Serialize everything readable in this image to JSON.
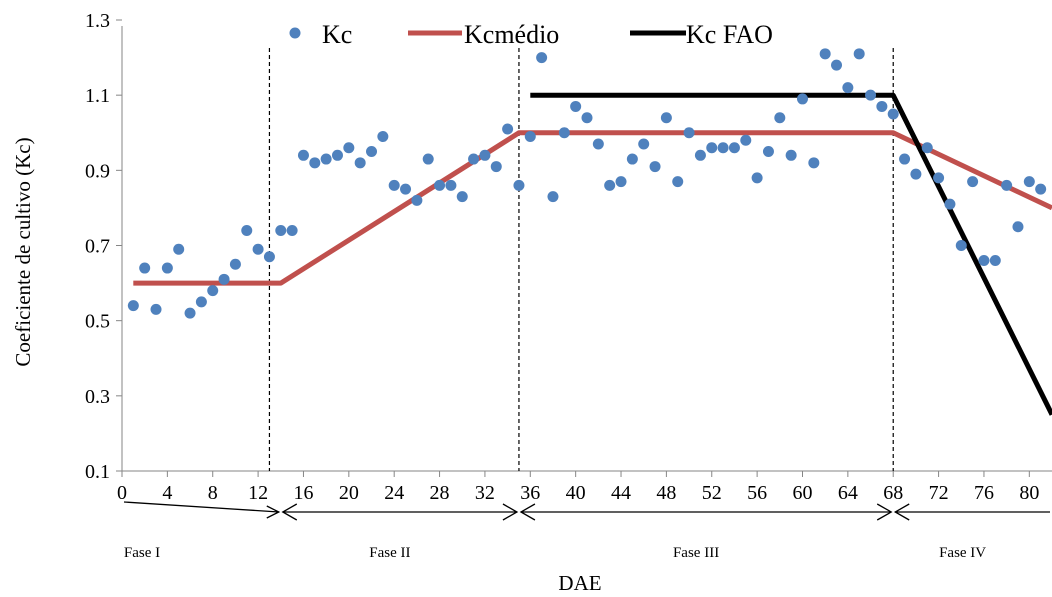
{
  "chart_data": {
    "type": "scatter",
    "title": "",
    "xlabel": "DAE",
    "ylabel": "Coeficiente de cultivo (Kc)",
    "xlim": [
      0,
      82
    ],
    "ylim": [
      0.1,
      1.3
    ],
    "x_ticks": [
      0,
      4,
      8,
      12,
      16,
      20,
      24,
      28,
      32,
      36,
      40,
      44,
      48,
      52,
      56,
      60,
      64,
      68,
      72,
      76,
      80
    ],
    "y_ticks": [
      0.1,
      0.3,
      0.5,
      0.7,
      0.9,
      1.1,
      1.3
    ],
    "x_tick_labels": [
      "0",
      "4",
      "8",
      "12",
      "16",
      "20",
      "24",
      "28",
      "32",
      "36",
      "40",
      "44",
      "48",
      "52",
      "56",
      "60",
      "64",
      "68",
      "72",
      "76",
      "80"
    ],
    "y_tick_labels": [
      "0.1",
      "0.3",
      "0.5",
      "0.7",
      "0.9",
      "1.1",
      "1.3"
    ],
    "grid": false,
    "legend_position": "top",
    "series": [
      {
        "name": "Kc",
        "kind": "scatter",
        "color": "#4f81bd",
        "x": [
          1,
          2,
          3,
          4,
          5,
          6,
          7,
          8,
          9,
          10,
          11,
          12,
          13,
          14,
          15,
          16,
          17,
          18,
          19,
          20,
          21,
          22,
          23,
          24,
          25,
          26,
          27,
          28,
          29,
          30,
          31,
          32,
          33,
          34,
          35,
          36,
          37,
          38,
          39,
          40,
          41,
          42,
          43,
          44,
          45,
          46,
          47,
          48,
          49,
          50,
          51,
          52,
          53,
          54,
          55,
          56,
          57,
          58,
          59,
          60,
          61,
          62,
          63,
          64,
          65,
          66,
          67,
          68,
          69,
          70,
          71,
          72,
          73,
          74,
          75,
          76,
          77,
          78,
          79,
          80,
          81
        ],
        "y": [
          0.54,
          0.64,
          0.53,
          0.64,
          0.69,
          0.52,
          0.55,
          0.58,
          0.61,
          0.65,
          0.74,
          0.69,
          0.67,
          0.74,
          0.74,
          0.94,
          0.92,
          0.93,
          0.94,
          0.96,
          0.92,
          0.95,
          0.99,
          0.86,
          0.85,
          0.82,
          0.93,
          0.86,
          0.86,
          0.83,
          0.93,
          0.94,
          0.91,
          1.01,
          0.86,
          0.99,
          1.2,
          0.83,
          1.0,
          1.07,
          1.04,
          0.97,
          0.86,
          0.87,
          0.93,
          0.97,
          0.91,
          1.04,
          0.87,
          1.0,
          0.94,
          0.96,
          0.96,
          0.96,
          0.98,
          0.88,
          0.95,
          1.04,
          0.94,
          1.09,
          0.92,
          1.21,
          1.18,
          1.12,
          1.21,
          1.1,
          1.07,
          1.05,
          0.93,
          0.89,
          0.96,
          0.88,
          0.81,
          0.7,
          0.87,
          0.66,
          0.66,
          0.86,
          0.75,
          0.87,
          0.85
        ]
      },
      {
        "name": "Kcmédio",
        "kind": "line",
        "color": "#c0504d",
        "x": [
          1,
          14,
          35,
          68,
          82
        ],
        "y": [
          0.6,
          0.6,
          1.0,
          1.0,
          0.8
        ]
      },
      {
        "name": "Kc FAO",
        "kind": "line",
        "color": "#000000",
        "x": [
          36,
          68,
          82
        ],
        "y": [
          1.1,
          1.1,
          0.25
        ]
      }
    ],
    "phase_boundaries": [
      13,
      35,
      68
    ],
    "phases": [
      {
        "label": "Fase I",
        "from": 0,
        "to": 14
      },
      {
        "label": "Fase II",
        "from": 14,
        "to": 35
      },
      {
        "label": "Fase III",
        "from": 35,
        "to": 68
      },
      {
        "label": "Fase IV",
        "from": 68,
        "to": 82
      }
    ]
  }
}
